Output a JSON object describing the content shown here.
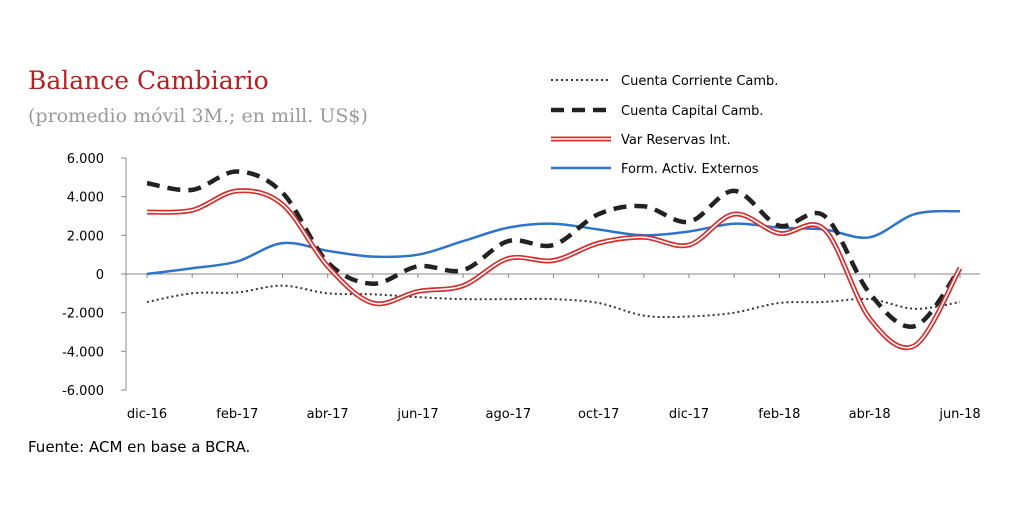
{
  "chart_data": {
    "type": "line",
    "title": "Balance Cambiario",
    "subtitle": "(promedio móvil 3M.; en mill. US$)",
    "source": "Fuente: ACM en base a BCRA.",
    "xlabel": "",
    "ylabel": "",
    "x": [
      "dic-16",
      "ene-17",
      "feb-17",
      "mar-17",
      "abr-17",
      "may-17",
      "jun-17",
      "jul-17",
      "ago-17",
      "sep-17",
      "oct-17",
      "nov-17",
      "dic-17",
      "ene-18",
      "feb-18",
      "mar-18",
      "abr-18",
      "may-18",
      "jun-18"
    ],
    "x_tick_labels": [
      "dic-16",
      "feb-17",
      "abr-17",
      "jun-17",
      "ago-17",
      "oct-17",
      "dic-17",
      "feb-18",
      "abr-18",
      "jun-18"
    ],
    "y_tick_labels": [
      "6.000",
      "4.000",
      "2.000",
      "0",
      "-2.000",
      "-4.000",
      "-6.000"
    ],
    "y_ticks": [
      6000,
      4000,
      2000,
      0,
      -2000,
      -4000,
      -6000
    ],
    "ylim": [
      -6000,
      6000
    ],
    "grid": false,
    "legend_position": "top-right",
    "series": [
      {
        "name": "Cuenta Corriente Camb.",
        "style": "dotted",
        "color": "#333333",
        "values": [
          -1450,
          -1000,
          -950,
          -600,
          -1000,
          -1050,
          -1200,
          -1300,
          -1300,
          -1300,
          -1500,
          -2150,
          -2200,
          -2000,
          -1500,
          -1450,
          -1300,
          -1800,
          -1450
        ]
      },
      {
        "name": "Cuenta Capital Camb.",
        "style": "dashed",
        "color": "#222222",
        "values": [
          4700,
          4350,
          5300,
          4200,
          600,
          -500,
          400,
          200,
          1700,
          1500,
          3100,
          3500,
          2700,
          4300,
          2500,
          3000,
          -1000,
          -2700,
          300
        ]
      },
      {
        "name": "Var Reservas Int.",
        "style": "double",
        "color": "#d32f2f",
        "values": [
          3200,
          3300,
          4300,
          3600,
          400,
          -1500,
          -900,
          -600,
          800,
          700,
          1600,
          1900,
          1500,
          3100,
          2100,
          2300,
          -2300,
          -3700,
          300
        ]
      },
      {
        "name": "Form. Activ. Externos",
        "style": "solid",
        "color": "#2e75c9",
        "values": [
          0,
          300,
          650,
          1600,
          1200,
          900,
          1000,
          1700,
          2400,
          2600,
          2300,
          2000,
          2200,
          2600,
          2400,
          2300,
          1900,
          3100,
          3250
        ]
      }
    ]
  }
}
